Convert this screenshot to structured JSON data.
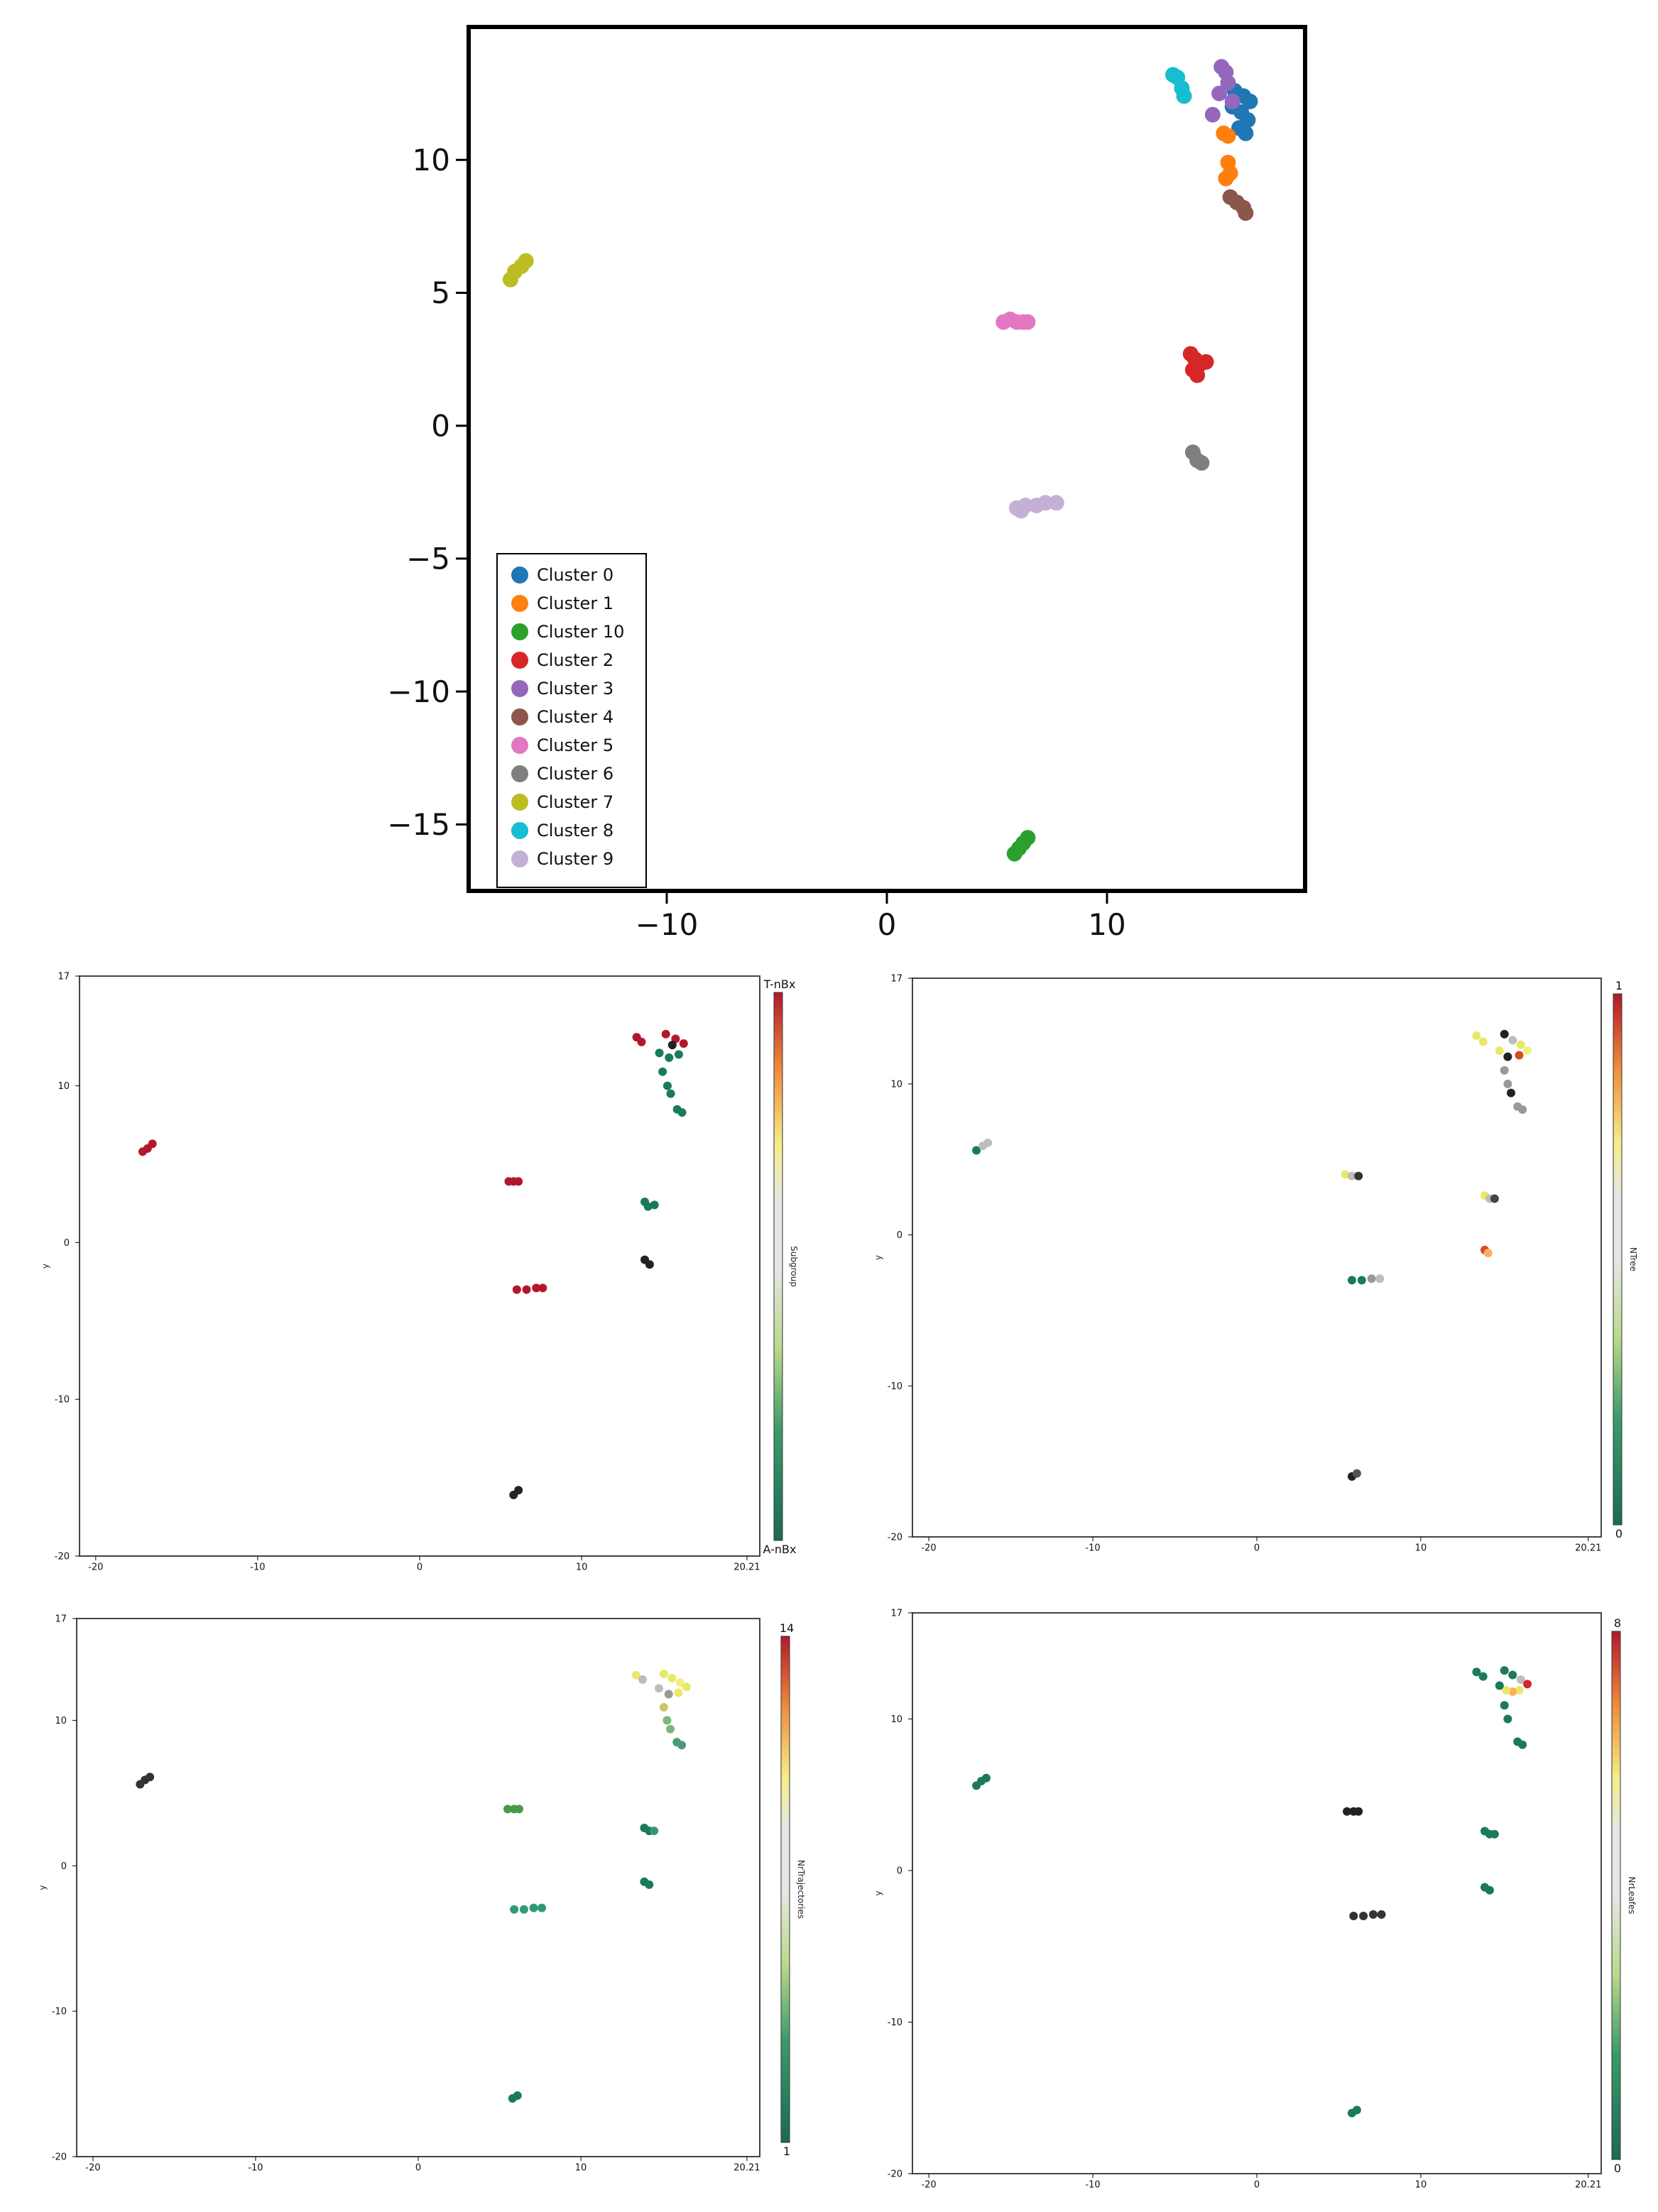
{
  "chart_data": [
    {
      "type": "scatter",
      "xlim": [
        -19,
        19
      ],
      "ylim": [
        -17.5,
        15
      ],
      "x_ticks": [
        -10,
        0,
        10
      ],
      "y_ticks": [
        10,
        5,
        0,
        -5,
        -10,
        -15
      ],
      "x_tick_labels": [
        "−10",
        "0",
        "10"
      ],
      "y_tick_labels": [
        "10",
        "5",
        "0",
        "−5",
        "−10",
        "−15"
      ],
      "legend_position": "lower-left",
      "series": [
        {
          "name": "Cluster 0",
          "color": "#1f77b4",
          "points": [
            [
              15.8,
              12.6
            ],
            [
              16.2,
              12.4
            ],
            [
              16.5,
              12.2
            ],
            [
              16.1,
              11.8
            ],
            [
              16.4,
              11.5
            ],
            [
              16.0,
              11.2
            ],
            [
              16.3,
              11.0
            ],
            [
              15.7,
              12.0
            ]
          ]
        },
        {
          "name": "Cluster 1",
          "color": "#ff7f0e",
          "points": [
            [
              15.3,
              11.0
            ],
            [
              15.5,
              10.9
            ],
            [
              15.5,
              9.9
            ],
            [
              15.6,
              9.5
            ],
            [
              15.4,
              9.3
            ]
          ]
        },
        {
          "name": "Cluster 10",
          "color": "#2ca02c",
          "points": [
            [
              5.8,
              -16.1
            ],
            [
              6.0,
              -15.9
            ],
            [
              6.2,
              -15.7
            ],
            [
              6.4,
              -15.5
            ]
          ]
        },
        {
          "name": "Cluster 2",
          "color": "#d62728",
          "points": [
            [
              13.8,
              2.7
            ],
            [
              14.0,
              2.5
            ],
            [
              13.9,
              2.1
            ],
            [
              14.1,
              1.9
            ],
            [
              14.5,
              2.4
            ],
            [
              14.2,
              2.3
            ]
          ]
        },
        {
          "name": "Cluster 3",
          "color": "#9467bd",
          "points": [
            [
              15.2,
              13.5
            ],
            [
              15.4,
              13.3
            ],
            [
              15.5,
              12.9
            ],
            [
              15.1,
              12.5
            ],
            [
              14.8,
              11.7
            ],
            [
              15.7,
              12.2
            ]
          ]
        },
        {
          "name": "Cluster 4",
          "color": "#8c564b",
          "points": [
            [
              15.6,
              8.6
            ],
            [
              15.9,
              8.4
            ],
            [
              16.2,
              8.2
            ],
            [
              16.3,
              8.0
            ]
          ]
        },
        {
          "name": "Cluster 5",
          "color": "#e377c2",
          "points": [
            [
              5.3,
              3.9
            ],
            [
              5.6,
              4.0
            ],
            [
              5.9,
              3.9
            ],
            [
              6.2,
              3.9
            ],
            [
              6.4,
              3.9
            ]
          ]
        },
        {
          "name": "Cluster 6",
          "color": "#7f7f7f",
          "points": [
            [
              13.9,
              -1.0
            ],
            [
              14.1,
              -1.3
            ],
            [
              14.3,
              -1.4
            ]
          ]
        },
        {
          "name": "Cluster 7",
          "color": "#bcbd22",
          "points": [
            [
              -17.1,
              5.5
            ],
            [
              -16.9,
              5.8
            ],
            [
              -16.6,
              6.0
            ],
            [
              -16.4,
              6.2
            ]
          ]
        },
        {
          "name": "Cluster 8",
          "color": "#17becf",
          "points": [
            [
              13.0,
              13.2
            ],
            [
              13.2,
              13.1
            ],
            [
              13.4,
              12.7
            ],
            [
              13.5,
              12.4
            ]
          ]
        },
        {
          "name": "Cluster 9",
          "color": "#c5b0d5",
          "points": [
            [
              5.9,
              -3.1
            ],
            [
              6.3,
              -3.0
            ],
            [
              6.8,
              -3.0
            ],
            [
              7.2,
              -2.9
            ],
            [
              7.7,
              -2.9
            ],
            [
              6.1,
              -3.2
            ]
          ]
        }
      ]
    },
    {
      "type": "scatter",
      "xlabel": "",
      "ylabel": "y",
      "xlim": [
        -21,
        21
      ],
      "ylim": [
        -20,
        17
      ],
      "x_ticks": [
        -20,
        -10,
        0,
        10,
        20.21
      ],
      "y_ticks": [
        17,
        10,
        0,
        -10,
        -20
      ],
      "x_tick_labels": [
        "-20",
        "-10",
        "0",
        "10",
        "20.21"
      ],
      "y_tick_labels": [
        "17",
        "10",
        "0",
        "-10",
        "-20"
      ],
      "colorbar": {
        "label": "Subgroup",
        "top_label": "T-nBx",
        "bottom_label": "A-nBx",
        "tick_labels": []
      },
      "points": [
        [
          -17.1,
          5.8,
          "#b2182b"
        ],
        [
          -16.8,
          6.0,
          "#b2182b"
        ],
        [
          -16.5,
          6.3,
          "#b2182b"
        ],
        [
          5.5,
          3.9,
          "#b2182b"
        ],
        [
          5.8,
          3.9,
          "#b2182b"
        ],
        [
          6.1,
          3.9,
          "#b2182b"
        ],
        [
          6.0,
          -3.0,
          "#b2182b"
        ],
        [
          6.6,
          -3.0,
          "#b2182b"
        ],
        [
          7.2,
          -2.9,
          "#b2182b"
        ],
        [
          7.6,
          -2.9,
          "#b2182b"
        ],
        [
          13.4,
          13.1,
          "#b2182b"
        ],
        [
          13.7,
          12.8,
          "#b2182b"
        ],
        [
          15.2,
          13.3,
          "#b2182b"
        ],
        [
          15.8,
          13.0,
          "#b2182b"
        ],
        [
          16.3,
          12.7,
          "#b2182b"
        ],
        [
          14.8,
          12.1,
          "#1b7a5a"
        ],
        [
          15.4,
          11.8,
          "#1b7a5a"
        ],
        [
          15.0,
          10.9,
          "#1b7a5a"
        ],
        [
          15.3,
          10.0,
          "#1b7a5a"
        ],
        [
          15.5,
          9.5,
          "#1b7a5a"
        ],
        [
          15.9,
          8.5,
          "#1b7a5a"
        ],
        [
          16.2,
          8.3,
          "#1b7a5a"
        ],
        [
          16.0,
          12.0,
          "#1b7a5a"
        ],
        [
          15.6,
          12.6,
          "#222222"
        ],
        [
          13.9,
          2.6,
          "#1b7a5a"
        ],
        [
          14.1,
          2.3,
          "#1b7a5a"
        ],
        [
          14.5,
          2.4,
          "#1b7a5a"
        ],
        [
          13.9,
          -1.1,
          "#222222"
        ],
        [
          14.2,
          -1.4,
          "#222222"
        ],
        [
          5.8,
          -16.1,
          "#222222"
        ],
        [
          6.1,
          -15.8,
          "#222222"
        ]
      ]
    },
    {
      "type": "scatter",
      "xlabel": "",
      "ylabel": "y",
      "xlim": [
        -21,
        21
      ],
      "ylim": [
        -20,
        17
      ],
      "x_ticks": [
        -20,
        -10,
        0,
        10,
        20.21
      ],
      "y_ticks": [
        17,
        10,
        0,
        -10,
        -20
      ],
      "x_tick_labels": [
        "-20",
        "-10",
        "0",
        "10",
        "20.21"
      ],
      "y_tick_labels": [
        "17",
        "10",
        "0",
        "-10",
        "-20"
      ],
      "colorbar": {
        "label": "NTree",
        "top_label": "1",
        "bottom_label": "0",
        "tick_labels": []
      },
      "points": [
        [
          -17.1,
          5.6,
          "#1b7a5a"
        ],
        [
          -16.7,
          5.9,
          "#bdbdbd"
        ],
        [
          -16.4,
          6.1,
          "#bdbdbd"
        ],
        [
          5.4,
          4.0,
          "#e8e86a"
        ],
        [
          5.8,
          3.9,
          "#bdbdbd"
        ],
        [
          6.2,
          3.9,
          "#333333"
        ],
        [
          5.8,
          -3.0,
          "#1b7a5a"
        ],
        [
          6.4,
          -3.0,
          "#1b7a5a"
        ],
        [
          7.0,
          -2.9,
          "#999999"
        ],
        [
          7.5,
          -2.9,
          "#bdbdbd"
        ],
        [
          13.4,
          13.2,
          "#e8e86a"
        ],
        [
          13.8,
          12.8,
          "#e8e86a"
        ],
        [
          15.1,
          13.3,
          "#222222"
        ],
        [
          15.6,
          12.9,
          "#bdbdbd"
        ],
        [
          16.1,
          12.6,
          "#e8e86a"
        ],
        [
          16.5,
          12.2,
          "#f0f080"
        ],
        [
          16.0,
          11.9,
          "#d84a2a"
        ],
        [
          15.3,
          11.8,
          "#222222"
        ],
        [
          14.8,
          12.2,
          "#e8e86a"
        ],
        [
          15.1,
          10.9,
          "#999999"
        ],
        [
          15.3,
          10.0,
          "#999999"
        ],
        [
          15.5,
          9.4,
          "#222222"
        ],
        [
          15.9,
          8.5,
          "#999999"
        ],
        [
          16.2,
          8.3,
          "#999999"
        ],
        [
          13.9,
          2.6,
          "#e8e86a"
        ],
        [
          14.2,
          2.4,
          "#bdbdbd"
        ],
        [
          14.5,
          2.4,
          "#444444"
        ],
        [
          13.9,
          -1.0,
          "#d84a2a"
        ],
        [
          14.1,
          -1.2,
          "#fdae61"
        ],
        [
          5.8,
          -16.0,
          "#222222"
        ],
        [
          6.1,
          -15.8,
          "#555555"
        ]
      ]
    },
    {
      "type": "scatter",
      "xlabel": "",
      "ylabel": "y",
      "xlim": [
        -21,
        21
      ],
      "ylim": [
        -20,
        17
      ],
      "x_ticks": [
        -20,
        -10,
        0,
        10,
        20.21
      ],
      "y_ticks": [
        17,
        10,
        0,
        -10,
        -20
      ],
      "x_tick_labels": [
        "-20",
        "-10",
        "0",
        "10",
        "20.21"
      ],
      "y_tick_labels": [
        "17",
        "10",
        "0",
        "-10",
        "-20"
      ],
      "colorbar": {
        "label": "NrTrajectories",
        "top_label": "14",
        "bottom_label": "1",
        "tick_labels": []
      },
      "points": [
        [
          -17.1,
          5.6,
          "#333333"
        ],
        [
          -16.8,
          5.9,
          "#333333"
        ],
        [
          -16.5,
          6.1,
          "#333333"
        ],
        [
          5.5,
          3.9,
          "#4a9a4a"
        ],
        [
          5.9,
          3.9,
          "#4a9a4a"
        ],
        [
          6.2,
          3.9,
          "#4a9a4a"
        ],
        [
          5.9,
          -3.0,
          "#2f9a7a"
        ],
        [
          6.5,
          -3.0,
          "#2f9a7a"
        ],
        [
          7.1,
          -2.9,
          "#2f9a7a"
        ],
        [
          7.6,
          -2.9,
          "#2f9a7a"
        ],
        [
          13.4,
          13.1,
          "#e8e86a"
        ],
        [
          13.8,
          12.8,
          "#bdbdbd"
        ],
        [
          15.1,
          13.2,
          "#e8e86a"
        ],
        [
          15.6,
          12.9,
          "#e8e86a"
        ],
        [
          16.1,
          12.6,
          "#f0f080"
        ],
        [
          16.5,
          12.3,
          "#e8e86a"
        ],
        [
          16.0,
          11.9,
          "#e8e86a"
        ],
        [
          15.4,
          11.8,
          "#999999"
        ],
        [
          14.8,
          12.2,
          "#bdbdbd"
        ],
        [
          15.1,
          10.9,
          "#c8c86a"
        ],
        [
          15.3,
          10.0,
          "#7ab87a"
        ],
        [
          15.5,
          9.4,
          "#7ab87a"
        ],
        [
          15.9,
          8.5,
          "#4a9a7a"
        ],
        [
          16.2,
          8.3,
          "#4a9a7a"
        ],
        [
          13.9,
          2.6,
          "#1b7a5a"
        ],
        [
          14.2,
          2.4,
          "#1b7a5a"
        ],
        [
          14.5,
          2.4,
          "#2f9a7a"
        ],
        [
          13.9,
          -1.1,
          "#1b7a5a"
        ],
        [
          14.2,
          -1.3,
          "#1b7a5a"
        ],
        [
          5.8,
          -16.0,
          "#1b7a5a"
        ],
        [
          6.1,
          -15.8,
          "#1b7a5a"
        ]
      ]
    },
    {
      "type": "scatter",
      "xlabel": "",
      "ylabel": "y",
      "xlim": [
        -21,
        21
      ],
      "ylim": [
        -20,
        17
      ],
      "x_ticks": [
        -20,
        -10,
        0,
        10,
        20.21
      ],
      "y_ticks": [
        17,
        10,
        0,
        -10,
        -20
      ],
      "x_tick_labels": [
        "-20",
        "-10",
        "0",
        "10",
        "20.21"
      ],
      "y_tick_labels": [
        "17",
        "10",
        "0",
        "-10",
        "-20"
      ],
      "colorbar": {
        "label": "NrLeafes",
        "top_label": "8",
        "bottom_label": "0",
        "tick_labels": []
      },
      "points": [
        [
          -17.1,
          5.6,
          "#1b7a5a"
        ],
        [
          -16.8,
          5.9,
          "#1b7a5a"
        ],
        [
          -16.5,
          6.1,
          "#1b7a5a"
        ],
        [
          5.5,
          3.9,
          "#222222"
        ],
        [
          5.9,
          3.9,
          "#222222"
        ],
        [
          6.2,
          3.9,
          "#222222"
        ],
        [
          5.9,
          -3.0,
          "#333333"
        ],
        [
          6.5,
          -3.0,
          "#333333"
        ],
        [
          7.1,
          -2.9,
          "#333333"
        ],
        [
          7.6,
          -2.9,
          "#333333"
        ],
        [
          13.4,
          13.1,
          "#1b7a5a"
        ],
        [
          13.8,
          12.8,
          "#1b7a5a"
        ],
        [
          15.1,
          13.2,
          "#1b7a5a"
        ],
        [
          15.6,
          12.9,
          "#1b7a5a"
        ],
        [
          16.1,
          12.6,
          "#bdbdbd"
        ],
        [
          16.5,
          12.3,
          "#d62728"
        ],
        [
          16.0,
          11.9,
          "#e8e86a"
        ],
        [
          15.6,
          11.8,
          "#fdae61"
        ],
        [
          15.2,
          11.9,
          "#e8e86a"
        ],
        [
          14.8,
          12.2,
          "#1b7a5a"
        ],
        [
          15.1,
          10.9,
          "#1b7a5a"
        ],
        [
          15.3,
          10.0,
          "#1b7a5a"
        ],
        [
          15.9,
          8.5,
          "#1b7a5a"
        ],
        [
          16.2,
          8.3,
          "#1b7a5a"
        ],
        [
          13.9,
          2.6,
          "#1b7a5a"
        ],
        [
          14.2,
          2.4,
          "#1b7a5a"
        ],
        [
          14.5,
          2.4,
          "#1b7a5a"
        ],
        [
          13.9,
          -1.1,
          "#1b7a5a"
        ],
        [
          14.2,
          -1.3,
          "#1b7a5a"
        ],
        [
          5.8,
          -16.0,
          "#1b7a5a"
        ],
        [
          6.1,
          -15.8,
          "#1b7a5a"
        ]
      ]
    }
  ]
}
